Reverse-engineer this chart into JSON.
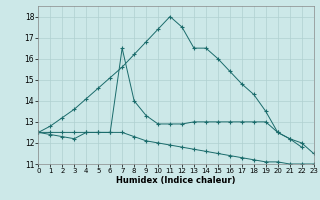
{
  "xlabel": "Humidex (Indice chaleur)",
  "bg_color": "#cce8e8",
  "grid_color": "#b0d0d0",
  "line_color": "#1a6b6b",
  "xlim": [
    0,
    23
  ],
  "ylim": [
    11,
    18.5
  ],
  "yticks": [
    11,
    12,
    13,
    14,
    15,
    16,
    17,
    18
  ],
  "xticks": [
    0,
    1,
    2,
    3,
    4,
    5,
    6,
    7,
    8,
    9,
    10,
    11,
    12,
    13,
    14,
    15,
    16,
    17,
    18,
    19,
    20,
    21,
    22,
    23
  ],
  "series1_x": [
    0,
    1,
    2,
    3,
    4,
    5,
    6,
    7,
    8,
    9,
    10,
    11,
    12,
    13,
    14,
    15,
    16,
    17,
    18,
    19,
    20,
    21,
    22,
    23
  ],
  "series1_y": [
    12.5,
    12.8,
    13.2,
    13.6,
    14.1,
    14.6,
    15.1,
    15.6,
    16.2,
    16.8,
    17.4,
    18.0,
    17.5,
    16.5,
    16.5,
    16.0,
    15.4,
    14.8,
    14.3,
    13.5,
    12.5,
    12.2,
    12.0,
    11.5
  ],
  "series2_x": [
    0,
    1,
    2,
    3,
    4,
    5,
    6,
    7,
    8,
    9,
    10,
    11,
    12,
    13,
    14,
    15,
    16,
    17,
    18,
    19,
    20,
    21,
    22
  ],
  "series2_y": [
    12.5,
    12.5,
    12.5,
    12.5,
    12.5,
    12.5,
    12.5,
    16.5,
    14.0,
    13.3,
    12.9,
    12.9,
    12.9,
    13.0,
    13.0,
    13.0,
    13.0,
    13.0,
    13.0,
    13.0,
    12.5,
    12.2,
    11.8
  ],
  "series3_x": [
    0,
    1,
    2,
    3,
    4,
    5,
    6,
    7,
    8,
    9,
    10,
    11,
    12,
    13,
    14,
    15,
    16,
    17,
    18,
    19,
    20,
    21,
    22,
    23
  ],
  "series3_y": [
    12.5,
    12.4,
    12.3,
    12.2,
    12.5,
    12.5,
    12.5,
    12.5,
    12.3,
    12.1,
    12.0,
    11.9,
    11.8,
    11.7,
    11.6,
    11.5,
    11.4,
    11.3,
    11.2,
    11.1,
    11.1,
    11.0,
    11.0,
    11.0
  ]
}
